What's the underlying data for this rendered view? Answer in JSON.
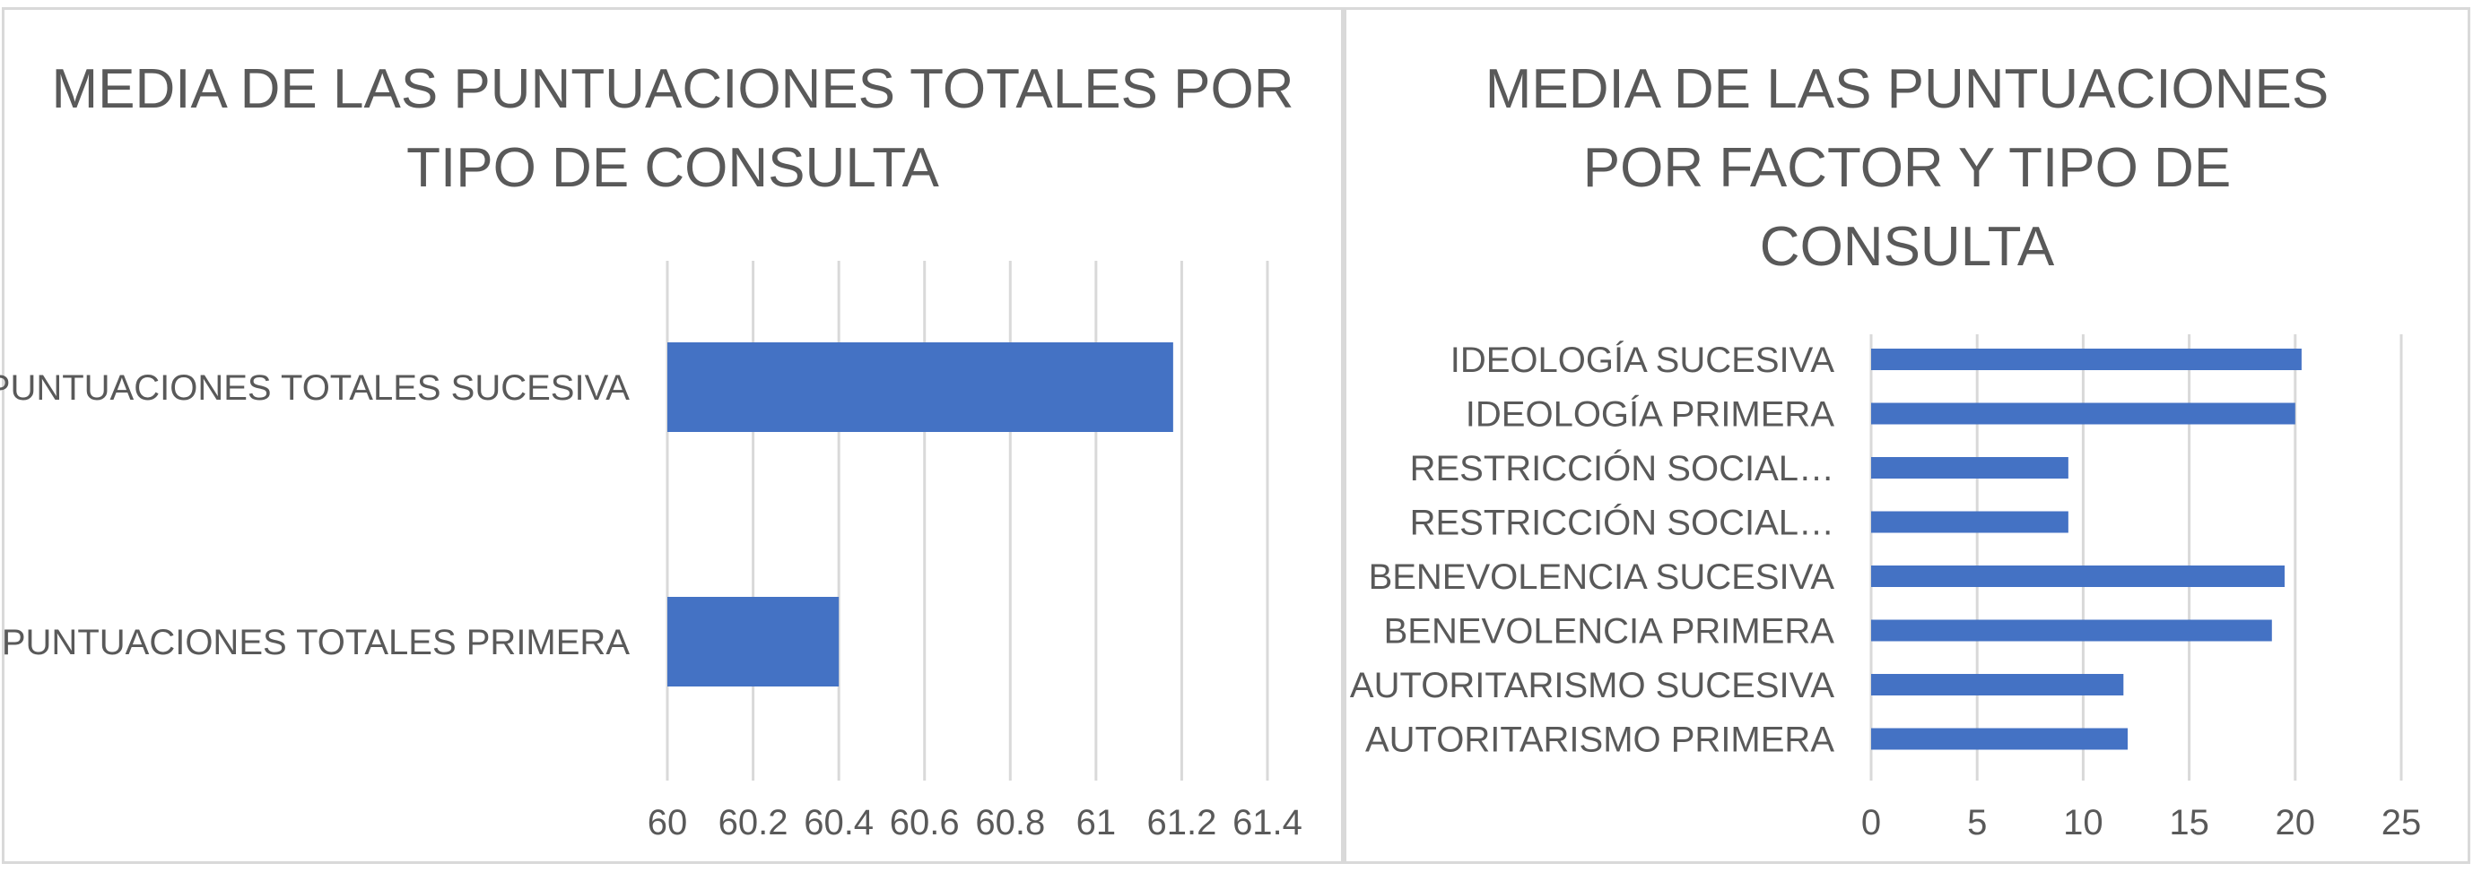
{
  "chart_data": [
    {
      "type": "bar",
      "orientation": "horizontal",
      "title": "MEDIA DE LAS PUNTUACIONES TOTALES POR TIPO DE CONSULTA",
      "categories": [
        "PUNTUACIONES TOTALES SUCESIVA",
        "PUNTUACIONES TOTALES PRIMERA"
      ],
      "values": [
        61.18,
        60.4
      ],
      "xlim": [
        60,
        61.4
      ],
      "xticks": [
        "60",
        "60.2",
        "60.4",
        "60.6",
        "60.8",
        "61",
        "61.2",
        "61.4"
      ],
      "tick_values": [
        60,
        60.2,
        60.4,
        60.6,
        60.8,
        61,
        61.2,
        61.4
      ],
      "bar_color": "#4472c4",
      "grid": true,
      "legend": "none"
    },
    {
      "type": "bar",
      "orientation": "horizontal",
      "title": "MEDIA DE LAS PUNTUACIONES POR FACTOR Y TIPO DE CONSULTA",
      "categories": [
        "IDEOLOGÍA SUCESIVA",
        "IDEOLOGÍA PRIMERA",
        "RESTRICCIÓN SOCIAL…",
        "RESTRICCIÓN SOCIAL…",
        "BENEVOLENCIA SUCESIVA",
        "BENEVOLENCIA PRIMERA",
        "AUTORITARISMO SUCESIVA",
        "AUTORITARISMO PRIMERA"
      ],
      "values": [
        20.3,
        20.0,
        9.3,
        9.3,
        19.5,
        18.9,
        11.9,
        12.1
      ],
      "xlim": [
        0,
        25
      ],
      "xticks": [
        "0",
        "5",
        "10",
        "15",
        "20",
        "25"
      ],
      "tick_values": [
        0,
        5,
        10,
        15,
        20,
        25
      ],
      "bar_color": "#4472c4",
      "grid": true,
      "legend": "none"
    }
  ]
}
